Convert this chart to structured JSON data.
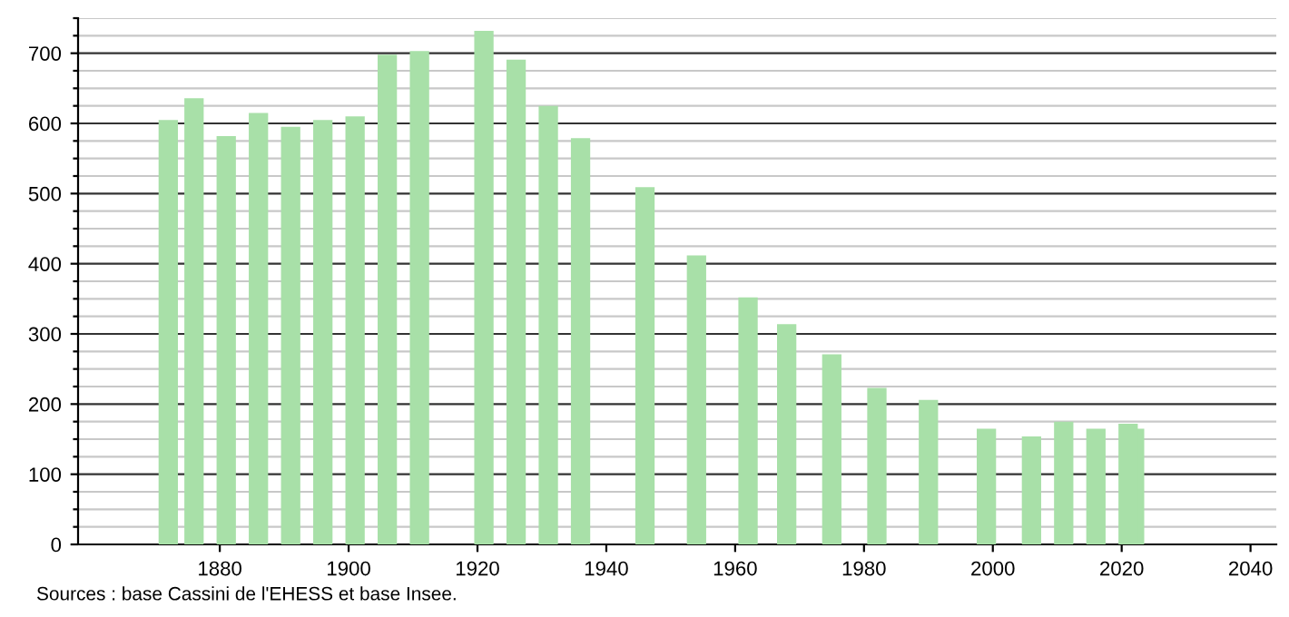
{
  "chart_data": {
    "type": "bar",
    "x": [
      1872,
      1876,
      1881,
      1886,
      1891,
      1896,
      1901,
      1906,
      1911,
      1921,
      1926,
      1931,
      1936,
      1946,
      1954,
      1962,
      1968,
      1975,
      1982,
      1990,
      1999,
      2006,
      2011,
      2016,
      2021,
      2022
    ],
    "values": [
      605,
      636,
      582,
      615,
      595,
      605,
      610,
      698,
      703,
      732,
      691,
      625,
      579,
      509,
      412,
      352,
      314,
      271,
      223,
      206,
      165,
      154,
      175,
      165,
      172,
      165
    ],
    "color": "#a8e0a8",
    "xlim": [
      1858,
      2044
    ],
    "xticks": [
      1880,
      1900,
      1920,
      1940,
      1960,
      1980,
      2000,
      2020,
      2040
    ],
    "ylim": [
      0,
      750
    ],
    "yticks": [
      0,
      {
        "value": 25,
        "label": null
      },
      {
        "value": 50,
        "label": null
      },
      {
        "value": 75,
        "label": null
      },
      100,
      {
        "value": 125,
        "label": null
      },
      {
        "value": 150,
        "label": null
      },
      {
        "value": 175,
        "label": null
      },
      200,
      {
        "value": 225,
        "label": null
      },
      {
        "value": 250,
        "label": null
      },
      {
        "value": 275,
        "label": null
      },
      300,
      {
        "value": 325,
        "label": null
      },
      {
        "value": 350,
        "label": null
      },
      {
        "value": 375,
        "label": null
      },
      400,
      {
        "value": 425,
        "label": null
      },
      {
        "value": 450,
        "label": null
      },
      {
        "value": 475,
        "label": null
      },
      500,
      {
        "value": 525,
        "label": null
      },
      {
        "value": 550,
        "label": null
      },
      {
        "value": 575,
        "label": null
      },
      600,
      {
        "value": 625,
        "label": null
      },
      {
        "value": 650,
        "label": null
      },
      {
        "value": 675,
        "label": null
      },
      700,
      {
        "value": 725,
        "label": null
      },
      {
        "value": 750,
        "label": null
      }
    ],
    "grid": "y",
    "annotations": [
      "Sources : base Cassini de l'EHESS et base Insee."
    ]
  }
}
